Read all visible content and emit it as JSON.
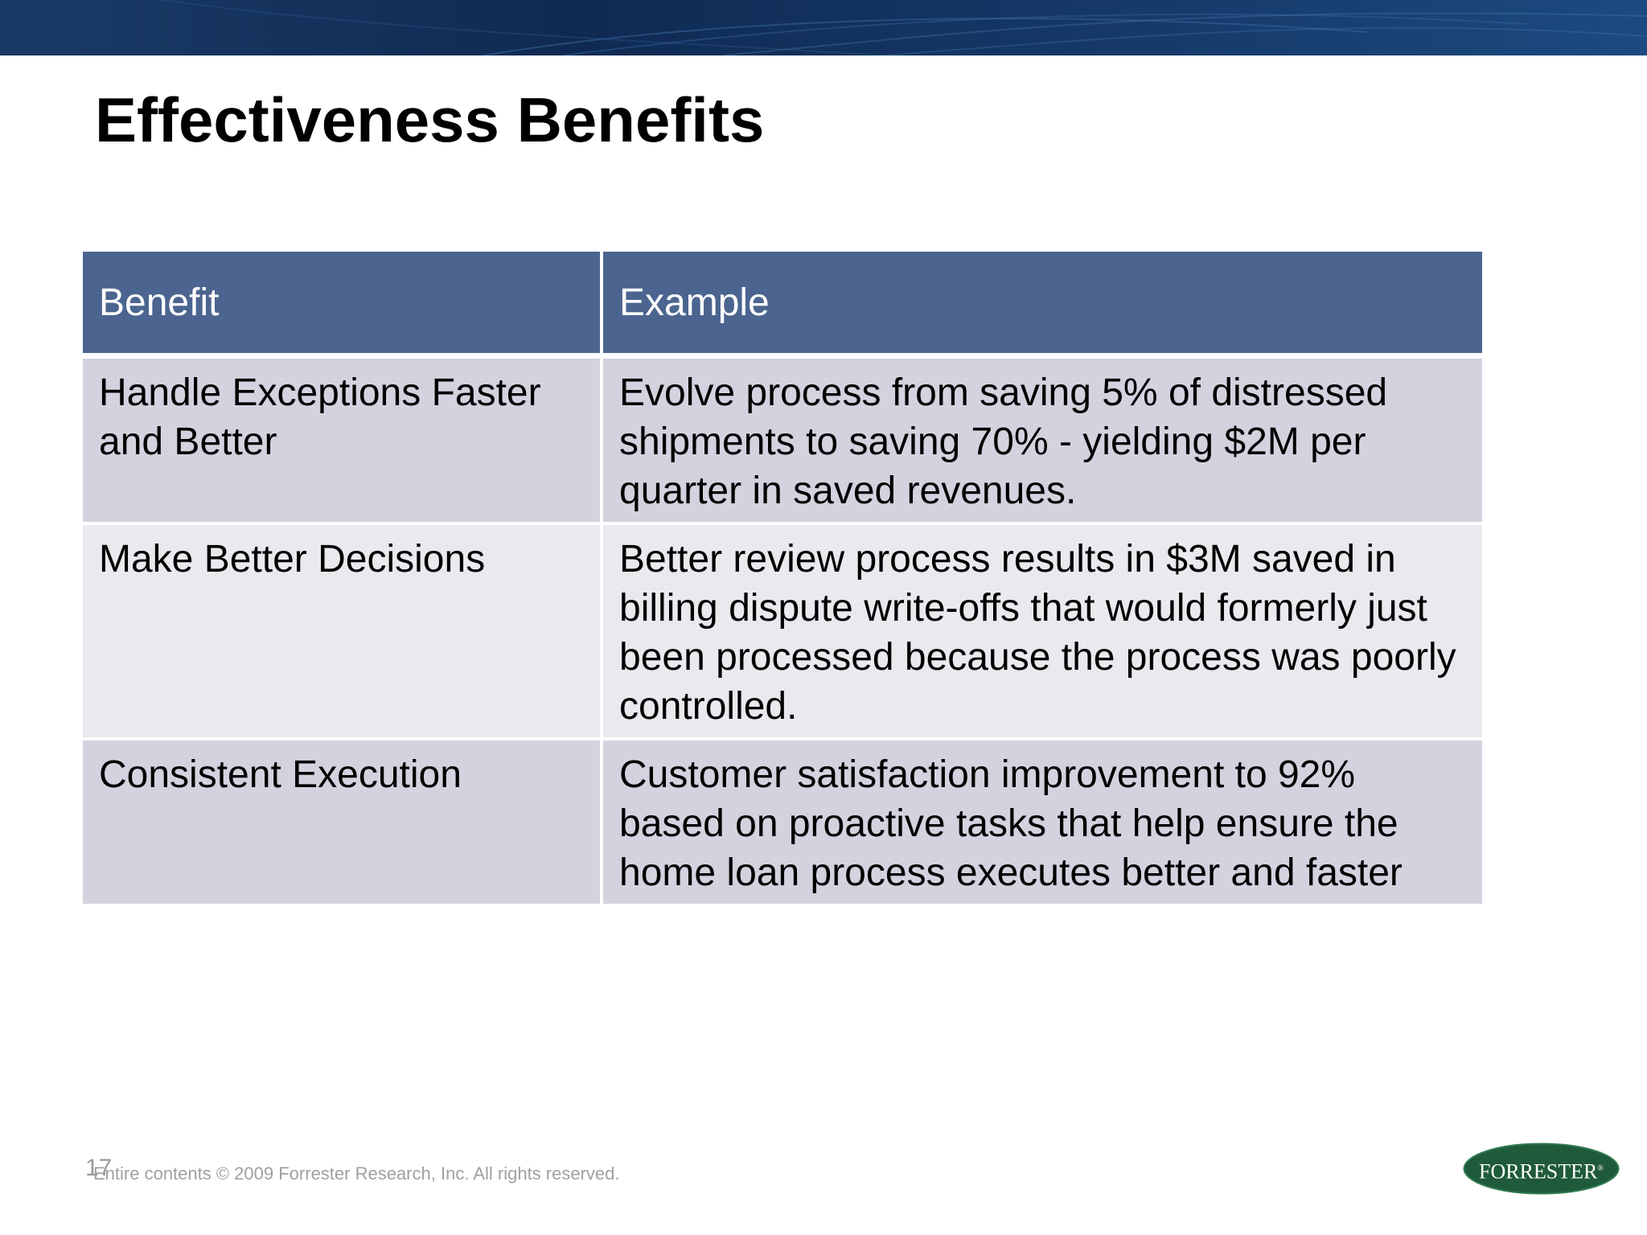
{
  "slide": {
    "title": "Effectiveness Benefits",
    "page_number": "17",
    "copyright": "Entire contents © 2009  Forrester Research, Inc. All rights reserved.",
    "logo_text": "FORRESTER",
    "logo_mark": "®"
  },
  "table": {
    "headers": [
      "Benefit",
      "Example"
    ],
    "rows": [
      {
        "benefit": "Handle Exceptions Faster and Better",
        "example": "Evolve process from saving 5% of distressed shipments to saving 70% - yielding $2M per quarter in saved revenues."
      },
      {
        "benefit": "Make Better Decisions",
        "example": "Better review process results in $3M saved in billing dispute write-offs that would formerly just been processed because the process was poorly controlled."
      },
      {
        "benefit": "Consistent Execution",
        "example": "Customer satisfaction improvement to 92% based on proactive tasks that help ensure the home loan process executes better and faster"
      }
    ]
  },
  "colors": {
    "header_band": "#143563",
    "table_header": "#4b6590",
    "row_dark": "#d2d3de",
    "row_light": "#e9e9ee",
    "logo_green": "#1f5a3a"
  }
}
